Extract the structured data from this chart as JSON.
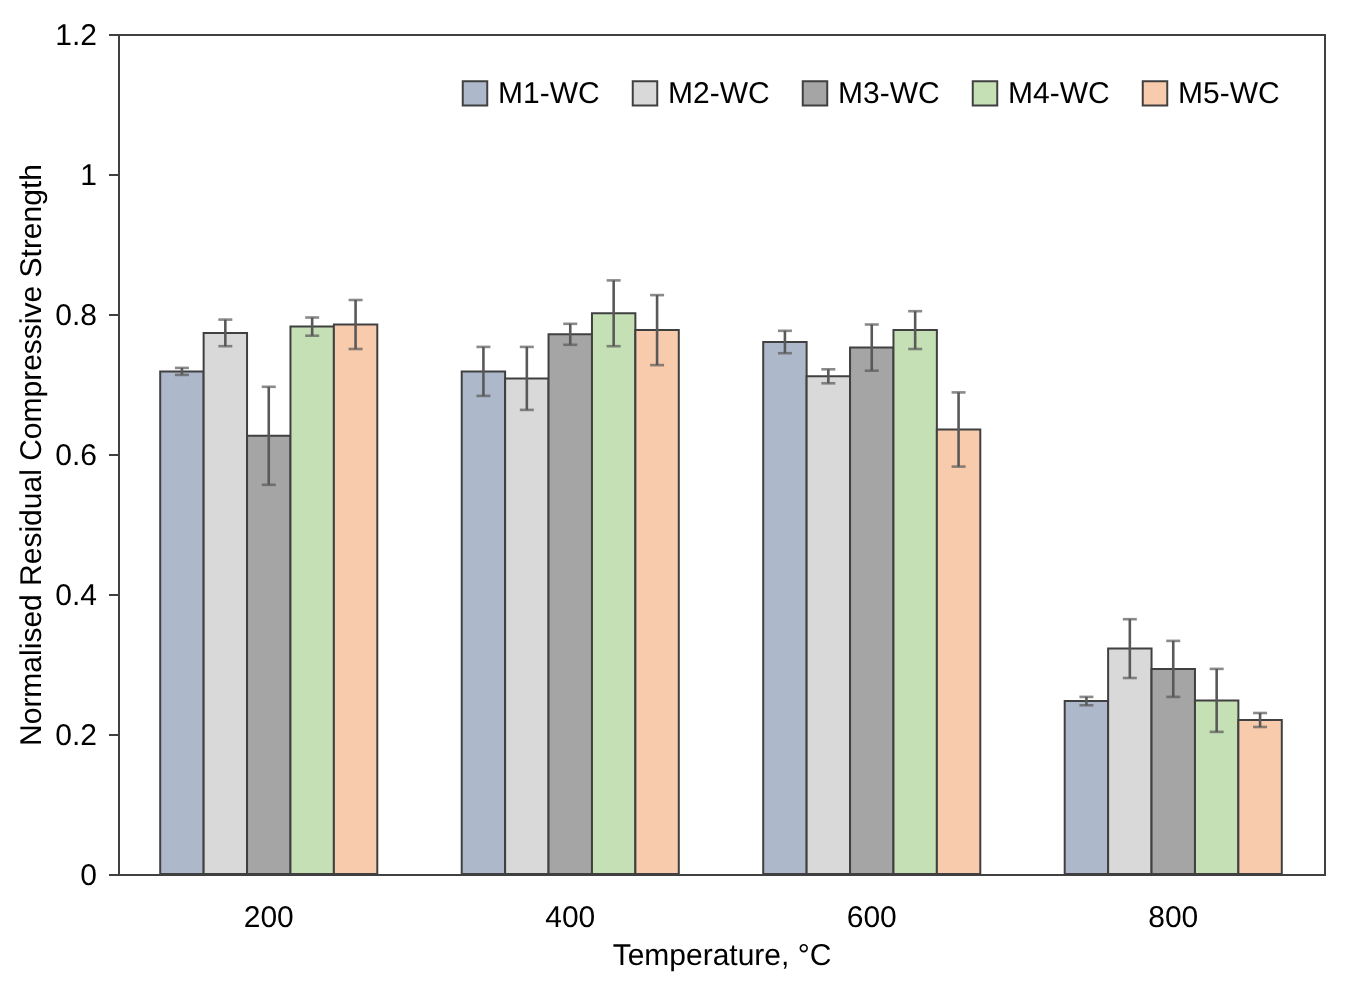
{
  "chart_data": {
    "type": "bar",
    "xlabel": "Temperature, °C",
    "ylabel": "Normalised Residual Compressive Strength",
    "categories": [
      "200",
      "400",
      "600",
      "800"
    ],
    "series": [
      {
        "name": "M1-WC",
        "color": "#adb9ca",
        "values": [
          0.718,
          0.718,
          0.76,
          0.247
        ],
        "errors": [
          0.005,
          0.035,
          0.016,
          0.006
        ]
      },
      {
        "name": "M2-WC",
        "color": "#d9d9d9",
        "values": [
          0.773,
          0.708,
          0.711,
          0.322
        ],
        "errors": [
          0.019,
          0.045,
          0.01,
          0.042
        ]
      },
      {
        "name": "M3-WC",
        "color": "#a5a5a5",
        "values": [
          0.626,
          0.771,
          0.752,
          0.293
        ],
        "errors": [
          0.07,
          0.015,
          0.033,
          0.04
        ]
      },
      {
        "name": "M4-WC",
        "color": "#c5e0b4",
        "values": [
          0.782,
          0.801,
          0.777,
          0.248
        ],
        "errors": [
          0.013,
          0.047,
          0.027,
          0.045
        ]
      },
      {
        "name": "M5-WC",
        "color": "#f8cbad",
        "values": [
          0.785,
          0.777,
          0.635,
          0.22
        ],
        "errors": [
          0.035,
          0.05,
          0.053,
          0.01
        ]
      }
    ],
    "ylim": [
      0,
      1.2
    ],
    "yticks": [
      0,
      0.2,
      0.4,
      0.6,
      0.8,
      1,
      1.2
    ],
    "grid": false,
    "legend": "top right"
  }
}
